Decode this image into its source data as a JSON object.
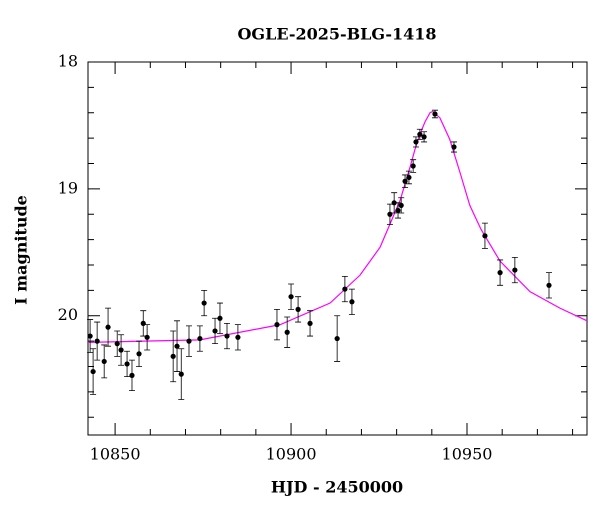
{
  "chart_data": {
    "type": "scatter",
    "title": "OGLE-2025-BLG-1418",
    "xlabel": "HJD - 2450000",
    "ylabel": "I magnitude",
    "xlim": [
      10842.3,
      10984.1
    ],
    "ylim": [
      20.94,
      18
    ],
    "xticks": [
      10850,
      10900,
      10950
    ],
    "yticks": [
      18,
      19,
      20
    ],
    "xminorticks": [
      10860,
      10870,
      10880,
      10890,
      10910,
      10920,
      10930,
      10940,
      10960,
      10970,
      10980
    ],
    "yminorticks": [
      18.2,
      18.4,
      18.6,
      18.8,
      19.2,
      19.4,
      19.6,
      19.8,
      20.2,
      20.4,
      20.6,
      20.8
    ],
    "series": [
      {
        "type": "errorbar",
        "color": "#000000",
        "x": [
          10842.9,
          10843.75,
          10844.9,
          10846.9,
          10848.0,
          10850.6,
          10851.7,
          10853.4,
          10854.8,
          10856.8,
          10858.0,
          10859.1,
          10866.5,
          10867.6,
          10868.8,
          10871.0,
          10874.1,
          10875.3,
          10878.4,
          10879.8,
          10881.8,
          10884.9,
          10896.0,
          10898.9,
          10900.0,
          10902.0,
          10905.4,
          10913.1,
          10915.3,
          10917.3,
          10928.1,
          10929.3,
          10930.4,
          10931.3,
          10932.4,
          10933.5,
          10934.7,
          10935.5,
          10936.6,
          10937.8,
          10940.9,
          10946.3,
          10955.1,
          10959.4,
          10963.6,
          10973.3
        ],
        "values": [
          20.16,
          20.44,
          20.2,
          20.36,
          20.09,
          20.22,
          20.27,
          20.38,
          20.47,
          20.3,
          20.06,
          20.17,
          20.32,
          20.24,
          20.46,
          20.2,
          20.18,
          19.9,
          20.12,
          20.02,
          20.16,
          20.17,
          20.07,
          20.13,
          19.85,
          19.95,
          20.06,
          20.18,
          19.79,
          19.89,
          19.2,
          19.11,
          19.17,
          19.13,
          18.94,
          18.91,
          18.82,
          18.63,
          18.57,
          18.59,
          18.41,
          18.67,
          19.37,
          19.66,
          19.64,
          19.76
        ],
        "errors": [
          0.13,
          0.18,
          0.15,
          0.13,
          0.15,
          0.1,
          0.12,
          0.1,
          0.12,
          0.1,
          0.1,
          0.1,
          0.2,
          0.2,
          0.2,
          0.12,
          0.1,
          0.1,
          0.1,
          0.12,
          0.1,
          0.1,
          0.12,
          0.12,
          0.1,
          0.1,
          0.1,
          0.18,
          0.1,
          0.1,
          0.08,
          0.08,
          0.06,
          0.06,
          0.05,
          0.05,
          0.05,
          0.04,
          0.04,
          0.04,
          0.03,
          0.04,
          0.1,
          0.1,
          0.1,
          0.1
        ]
      },
      {
        "type": "line",
        "color": "#ff00ff",
        "x": [
          10842.3,
          10874.1,
          10896.9,
          10911.1,
          10919.6,
          10925.3,
          10931.0,
          10933.8,
          10935.2,
          10936.6,
          10938.1,
          10939.5,
          10940.3,
          10942.3,
          10945.1,
          10948.0,
          10950.8,
          10954.0,
          10959.4,
          10967.9,
          10976.4,
          10984.1
        ],
        "values": [
          20.21,
          20.19,
          20.07,
          19.9,
          19.68,
          19.46,
          19.09,
          18.83,
          18.69,
          18.57,
          18.47,
          18.4,
          18.39,
          18.44,
          18.61,
          18.87,
          19.13,
          19.32,
          19.57,
          19.81,
          19.94,
          20.04
        ]
      }
    ]
  }
}
